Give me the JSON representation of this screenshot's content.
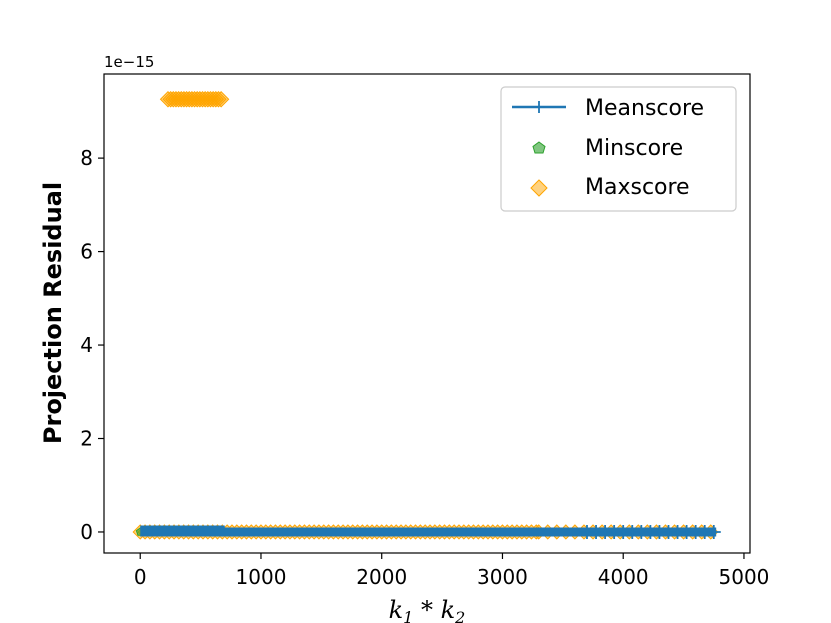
{
  "chart_data": {
    "type": "scatter",
    "title": "",
    "xlabel": "k₁ * k₂",
    "xlabel_parts": {
      "a": "k",
      "a_sub": "1",
      "op": " * ",
      "b": "k",
      "b_sub": "2"
    },
    "ylabel": "Projection Residual",
    "y_offset_text": "1e−15",
    "xlim": [
      -300,
      5050
    ],
    "ylim": [
      -0.45,
      9.8
    ],
    "y_scale_note": "values in units of 1e-15",
    "xticks": [
      0,
      1000,
      2000,
      3000,
      4000,
      5000
    ],
    "xtick_labels": [
      "0",
      "1000",
      "2000",
      "3000",
      "4000",
      "5000"
    ],
    "yticks": [
      0,
      2,
      4,
      6,
      8
    ],
    "ytick_labels": [
      "0",
      "2",
      "4",
      "6",
      "8"
    ],
    "grid": false,
    "legend_position": "upper right",
    "series": [
      {
        "name": "Meanscore",
        "marker": "plus-line",
        "color": "#1f77b4",
        "x_range": [
          0,
          4770
        ],
        "y": 0.0
      },
      {
        "name": "Minscore",
        "marker": "pentagon",
        "color": "#2ca02c",
        "x_range": [
          0,
          4770
        ],
        "y": 0.0
      },
      {
        "name": "Maxscore",
        "marker": "diamond",
        "color": "#ffa500",
        "x_range": [
          0,
          4770
        ],
        "y": 0.0,
        "outliers": {
          "x_range": [
            230,
            690
          ],
          "y": 9.26
        }
      }
    ]
  }
}
